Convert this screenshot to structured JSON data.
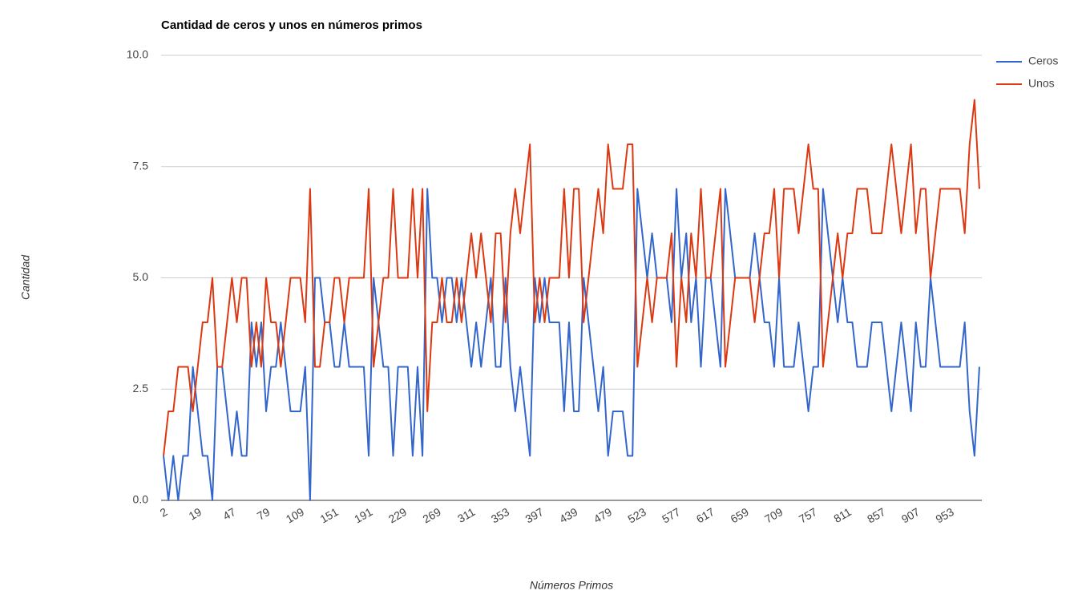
{
  "chart_data": {
    "type": "line",
    "title": "Cantidad de ceros y unos en números primos",
    "x_label": "Números Primos",
    "y_label": "Cantidad",
    "categories": [
      "2",
      null,
      null,
      null,
      null,
      null,
      null,
      "19",
      null,
      null,
      null,
      null,
      null,
      null,
      "47",
      null,
      null,
      null,
      null,
      null,
      null,
      "79",
      null,
      null,
      null,
      null,
      null,
      null,
      "109",
      null,
      null,
      null,
      null,
      null,
      null,
      "151",
      null,
      null,
      null,
      null,
      null,
      null,
      "191",
      null,
      null,
      null,
      null,
      null,
      null,
      "229",
      null,
      null,
      null,
      null,
      null,
      null,
      "269",
      null,
      null,
      null,
      null,
      null,
      null,
      "311",
      null,
      null,
      null,
      null,
      null,
      null,
      "353",
      null,
      null,
      null,
      null,
      null,
      null,
      "397",
      null,
      null,
      null,
      null,
      null,
      null,
      "439",
      null,
      null,
      null,
      null,
      null,
      null,
      "479",
      null,
      null,
      null,
      null,
      null,
      null,
      "523",
      null,
      null,
      null,
      null,
      null,
      null,
      "577",
      null,
      null,
      null,
      null,
      null,
      null,
      "617",
      null,
      null,
      null,
      null,
      null,
      null,
      "659",
      null,
      null,
      null,
      null,
      null,
      null,
      "709",
      null,
      null,
      null,
      null,
      null,
      null,
      "757",
      null,
      null,
      null,
      null,
      null,
      null,
      "811",
      null,
      null,
      null,
      null,
      null,
      null,
      "857",
      null,
      null,
      null,
      null,
      null,
      null,
      "907",
      null,
      null,
      null,
      null,
      null,
      null,
      "953",
      null,
      null,
      null,
      null,
      null,
      null
    ],
    "series": [
      {
        "name": "Ceros",
        "color": "#3366cc",
        "values": [
          1,
          0,
          1,
          0,
          1,
          1,
          3,
          2,
          1,
          1,
          0,
          3,
          3,
          2,
          1,
          2,
          1,
          1,
          4,
          3,
          4,
          2,
          3,
          3,
          4,
          3,
          2,
          2,
          2,
          3,
          0,
          5,
          5,
          4,
          4,
          3,
          3,
          4,
          3,
          3,
          3,
          3,
          1,
          5,
          4,
          3,
          3,
          1,
          3,
          3,
          3,
          1,
          3,
          1,
          7,
          5,
          5,
          4,
          5,
          5,
          4,
          5,
          4,
          3,
          4,
          3,
          4,
          5,
          3,
          3,
          5,
          3,
          2,
          3,
          2,
          1,
          5,
          4,
          5,
          4,
          4,
          4,
          2,
          4,
          2,
          2,
          5,
          4,
          3,
          2,
          3,
          1,
          2,
          2,
          2,
          1,
          1,
          7,
          6,
          5,
          6,
          5,
          5,
          5,
          4,
          7,
          5,
          6,
          4,
          5,
          3,
          5,
          5,
          4,
          3,
          7,
          6,
          5,
          5,
          5,
          5,
          6,
          5,
          4,
          4,
          3,
          5,
          3,
          3,
          3,
          4,
          3,
          2,
          3,
          3,
          7,
          6,
          5,
          4,
          5,
          4,
          4,
          3,
          3,
          3,
          4,
          4,
          4,
          3,
          2,
          3,
          4,
          3,
          2,
          4,
          3,
          3,
          5,
          4,
          3,
          3,
          3,
          3,
          3,
          4,
          2,
          1,
          3
        ]
      },
      {
        "name": "Unos",
        "color": "#dc3912",
        "values": [
          1,
          2,
          2,
          3,
          3,
          3,
          2,
          3,
          4,
          4,
          5,
          3,
          3,
          4,
          5,
          4,
          5,
          5,
          3,
          4,
          3,
          5,
          4,
          4,
          3,
          4,
          5,
          5,
          5,
          4,
          7,
          3,
          3,
          4,
          4,
          5,
          5,
          4,
          5,
          5,
          5,
          5,
          7,
          3,
          4,
          5,
          5,
          7,
          5,
          5,
          5,
          7,
          5,
          7,
          2,
          4,
          4,
          5,
          4,
          4,
          5,
          4,
          5,
          6,
          5,
          6,
          5,
          4,
          6,
          6,
          4,
          6,
          7,
          6,
          7,
          8,
          4,
          5,
          4,
          5,
          5,
          5,
          7,
          5,
          7,
          7,
          4,
          5,
          6,
          7,
          6,
          8,
          7,
          7,
          7,
          8,
          8,
          3,
          4,
          5,
          4,
          5,
          5,
          5,
          6,
          3,
          5,
          4,
          6,
          5,
          7,
          5,
          5,
          6,
          7,
          3,
          4,
          5,
          5,
          5,
          5,
          4,
          5,
          6,
          6,
          7,
          5,
          7,
          7,
          7,
          6,
          7,
          8,
          7,
          7,
          3,
          4,
          5,
          6,
          5,
          6,
          6,
          7,
          7,
          7,
          6,
          6,
          6,
          7,
          8,
          7,
          6,
          7,
          8,
          6,
          7,
          7,
          5,
          6,
          7,
          7,
          7,
          7,
          7,
          6,
          8,
          9,
          7
        ]
      }
    ],
    "ylim": [
      0,
      10
    ],
    "yticks": [
      {
        "value": 0,
        "label": "0.0"
      },
      2.5,
      {
        "value": 5,
        "label": "5.0"
      },
      7.5,
      {
        "value": 10,
        "label": "10.0"
      }
    ],
    "grid": true,
    "legend": "right"
  }
}
